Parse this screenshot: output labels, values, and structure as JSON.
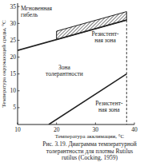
{
  "chart_data": {
    "type": "line",
    "x_label": "Температура акклимации, °C",
    "y_label": "Температура окружающей среды, °C",
    "xlim": [
      10,
      40
    ],
    "xticks": [
      10,
      20,
      30,
      40
    ],
    "ylim": [
      0,
      36
    ],
    "yticks": [
      5,
      10,
      15,
      20,
      25,
      30,
      35
    ],
    "grid": false,
    "series": [
      {
        "x": [
          10,
          38
        ],
        "values": [
          22,
          31
        ],
        "color": "#222222",
        "line_style": "solid"
      },
      {
        "type": "area",
        "x": [
          20,
          38
        ],
        "values": [
          27.7,
          33.5
        ],
        "lower": [
          25.2,
          31
        ],
        "color": "#222222",
        "line_style": "hatched"
      },
      {
        "x": [
          18,
          38
        ],
        "values": [
          0,
          15
        ],
        "color": "#222222",
        "line_style": "solid"
      },
      {
        "x": [
          38,
          38
        ],
        "values": [
          31,
          0
        ],
        "color": "#222222",
        "line_style": "dashed"
      }
    ],
    "annotations": [
      {
        "lines": [
          "Мгновенная",
          "гибель"
        ],
        "x": 10.8,
        "y": 34.6,
        "anchor": "start"
      },
      {
        "lines": [
          "Резистент-",
          "ная зона"
        ],
        "x": 32.5,
        "y": 27,
        "anchor": "middle"
      },
      {
        "lines": [
          "Зона",
          "толерантности"
        ],
        "x": 22,
        "y": 17,
        "anchor": "middle"
      },
      {
        "lines": [
          "Резистент-",
          "ная зона"
        ],
        "x": 33.5,
        "y": 6.5,
        "anchor": "middle"
      }
    ],
    "caption": [
      "Рис. 3.19. Диаграмма температурной",
      "толерантности для плотвы Rutilus",
      "rutilus (Cocking, 1959)"
    ]
  }
}
